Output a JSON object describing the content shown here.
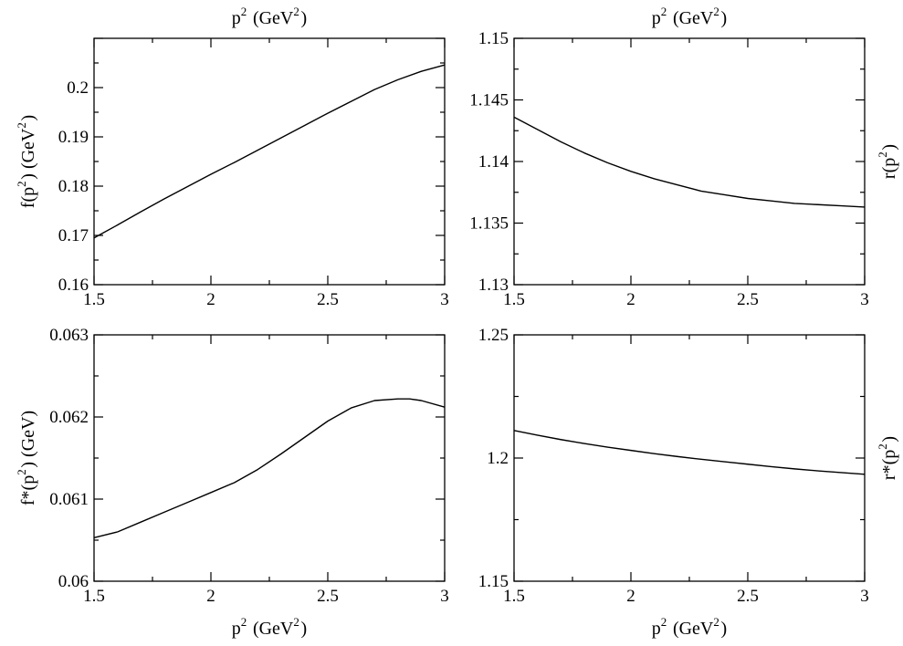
{
  "chart_data": [
    {
      "type": "line",
      "id": "top-left",
      "title": "",
      "xlabel": "p^2 (GeV^2)",
      "xlabel_position": "top",
      "ylabel": "f(p^2) (GeV^2)",
      "ylabel_position": "left",
      "xlim": [
        1.5,
        3
      ],
      "ylim": [
        0.16,
        0.21
      ],
      "xticks": [
        "1.5",
        "2",
        "2.5",
        "3"
      ],
      "yticks": [
        "0.16",
        "0.17",
        "0.18",
        "0.19",
        "0.2"
      ],
      "ytick_values": [
        0.16,
        0.17,
        0.18,
        0.19,
        0.2
      ],
      "series": [
        {
          "x": [
            1.5,
            1.6,
            1.7,
            1.8,
            1.9,
            2.0,
            2.1,
            2.2,
            2.3,
            2.4,
            2.5,
            2.6,
            2.7,
            2.8,
            2.9,
            3.0
          ],
          "y": [
            0.1695,
            0.1721,
            0.1748,
            0.1774,
            0.1799,
            0.1824,
            0.1848,
            0.1873,
            0.1898,
            0.1923,
            0.1948,
            0.1972,
            0.1996,
            0.2016,
            0.2033,
            0.2046
          ]
        }
      ]
    },
    {
      "type": "line",
      "id": "top-right",
      "title": "",
      "xlabel": "p^2 (GeV^2)",
      "xlabel_position": "top",
      "ylabel": "r(p^2)",
      "ylabel_position": "right",
      "xlim": [
        1.5,
        3
      ],
      "ylim": [
        1.13,
        1.15
      ],
      "xticks": [
        "1.5",
        "2",
        "2.5",
        "3"
      ],
      "yticks": [
        "1.13",
        "1.135",
        "1.14",
        "1.145",
        "1.15"
      ],
      "ytick_values": [
        1.13,
        1.135,
        1.14,
        1.145,
        1.15
      ],
      "series": [
        {
          "x": [
            1.5,
            1.6,
            1.7,
            1.8,
            1.9,
            2.0,
            2.1,
            2.2,
            2.3,
            2.4,
            2.5,
            2.6,
            2.7,
            2.8,
            2.9,
            3.0
          ],
          "y": [
            1.1436,
            1.1426,
            1.1416,
            1.1407,
            1.1399,
            1.1392,
            1.1386,
            1.1381,
            1.1376,
            1.1373,
            1.137,
            1.1368,
            1.1366,
            1.1365,
            1.1364,
            1.1363
          ]
        }
      ]
    },
    {
      "type": "line",
      "id": "bottom-left",
      "title": "",
      "xlabel": "p^2 (GeV^2)",
      "xlabel_position": "bottom",
      "ylabel": "f*(p^2) (GeV)",
      "ylabel_position": "left",
      "xlim": [
        1.5,
        3
      ],
      "ylim": [
        0.06,
        0.063
      ],
      "xticks": [
        "1.5",
        "2",
        "2.5",
        "3"
      ],
      "yticks": [
        "0.06",
        "0.061",
        "0.062",
        "0.063"
      ],
      "ytick_values": [
        0.06,
        0.061,
        0.062,
        0.063
      ],
      "series": [
        {
          "x": [
            1.5,
            1.6,
            1.7,
            1.8,
            1.9,
            2.0,
            2.1,
            2.2,
            2.3,
            2.4,
            2.5,
            2.6,
            2.7,
            2.8,
            2.85,
            2.9,
            3.0
          ],
          "y": [
            0.06053,
            0.0606,
            0.06072,
            0.06084,
            0.06096,
            0.06108,
            0.0612,
            0.06136,
            0.06155,
            0.06175,
            0.06195,
            0.06211,
            0.0622,
            0.06222,
            0.06222,
            0.0622,
            0.06212
          ]
        }
      ]
    },
    {
      "type": "line",
      "id": "bottom-right",
      "title": "",
      "xlabel": "p^2 (GeV^2)",
      "xlabel_position": "bottom",
      "ylabel": "r*(p^2)",
      "ylabel_position": "right",
      "xlim": [
        1.5,
        3
      ],
      "ylim": [
        1.15,
        1.25
      ],
      "xticks": [
        "1.5",
        "2",
        "2.5",
        "3"
      ],
      "yticks": [
        "1.15",
        "1.2",
        "1.25"
      ],
      "ytick_values": [
        1.15,
        1.2,
        1.25
      ],
      "series": [
        {
          "x": [
            1.5,
            1.6,
            1.7,
            1.8,
            1.9,
            2.0,
            2.1,
            2.2,
            2.3,
            2.4,
            2.5,
            2.6,
            2.7,
            2.8,
            2.9,
            3.0
          ],
          "y": [
            1.2112,
            1.2093,
            1.2075,
            1.2059,
            1.2044,
            1.2031,
            1.2018,
            1.2006,
            1.1995,
            1.1985,
            1.1975,
            1.1965,
            1.1956,
            1.1948,
            1.1941,
            1.1934
          ]
        }
      ]
    }
  ]
}
